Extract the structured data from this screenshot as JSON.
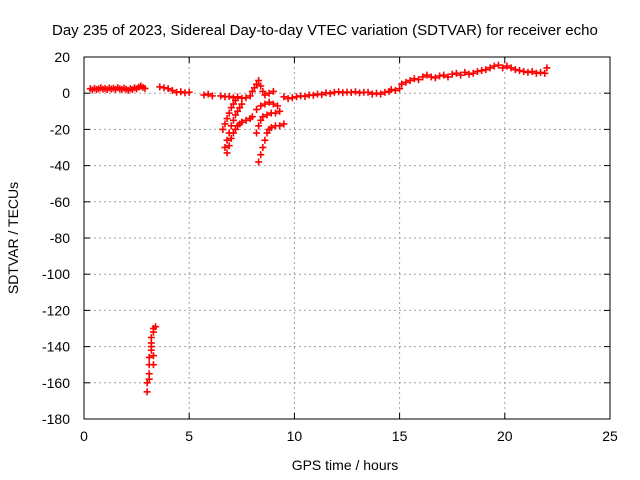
{
  "chart_data": {
    "type": "scatter",
    "title": "Day 235 of 2023, Sidereal Day-to-day VTEC variation (SDTVAR) for receiver echo",
    "xlabel": "GPS time / hours",
    "ylabel": "SDTVAR / TECUs",
    "xlim": [
      0,
      25
    ],
    "ylim": [
      -180,
      20
    ],
    "xticks": [
      0,
      5,
      10,
      15,
      20,
      25
    ],
    "yticks": [
      20,
      0,
      -20,
      -40,
      -60,
      -80,
      -100,
      -120,
      -140,
      -160,
      -180
    ],
    "grid": true,
    "marker": "+",
    "color": "#ff0000",
    "series": [
      {
        "name": "SDTVAR",
        "points": [
          [
            0.3,
            2.5
          ],
          [
            0.4,
            1.8
          ],
          [
            0.5,
            2.7
          ],
          [
            0.6,
            2.0
          ],
          [
            0.7,
            2.4
          ],
          [
            0.8,
            3.0
          ],
          [
            0.9,
            2.2
          ],
          [
            1.0,
            2.6
          ],
          [
            1.1,
            2.0
          ],
          [
            1.2,
            2.9
          ],
          [
            1.3,
            2.3
          ],
          [
            1.4,
            2.7
          ],
          [
            1.5,
            2.1
          ],
          [
            1.6,
            3.1
          ],
          [
            1.7,
            2.4
          ],
          [
            1.8,
            2.0
          ],
          [
            1.9,
            2.8
          ],
          [
            2.0,
            2.2
          ],
          [
            2.1,
            1.6
          ],
          [
            2.2,
            2.5
          ],
          [
            2.3,
            2.0
          ],
          [
            2.4,
            3.0
          ],
          [
            2.5,
            2.4
          ],
          [
            2.6,
            3.4
          ],
          [
            2.7,
            4.0
          ],
          [
            2.8,
            3.2
          ],
          [
            2.9,
            2.6
          ],
          [
            3.6,
            3.5
          ],
          [
            3.8,
            3.0
          ],
          [
            4.0,
            2.5
          ],
          [
            4.2,
            1.5
          ],
          [
            4.4,
            0.5
          ],
          [
            4.6,
            0.8
          ],
          [
            4.8,
            0.2
          ],
          [
            5.0,
            0.5
          ],
          [
            5.7,
            -1.0
          ],
          [
            5.9,
            -0.5
          ],
          [
            6.1,
            -1.5
          ],
          [
            6.5,
            -1.5
          ],
          [
            6.7,
            -2.0
          ],
          [
            6.9,
            -1.8
          ],
          [
            7.1,
            -2.5
          ],
          [
            7.3,
            -2.0
          ],
          [
            7.5,
            -2.8
          ],
          [
            7.7,
            -2.5
          ],
          [
            7.9,
            -1.5
          ],
          [
            6.6,
            -20
          ],
          [
            6.7,
            -17
          ],
          [
            6.8,
            -14
          ],
          [
            6.9,
            -11
          ],
          [
            7.0,
            -8
          ],
          [
            7.1,
            -6
          ],
          [
            7.2,
            -4
          ],
          [
            6.7,
            -30
          ],
          [
            6.8,
            -26
          ],
          [
            6.9,
            -22
          ],
          [
            7.0,
            -18
          ],
          [
            7.1,
            -15
          ],
          [
            7.2,
            -12
          ],
          [
            7.3,
            -10
          ],
          [
            7.4,
            -8
          ],
          [
            7.5,
            -6
          ],
          [
            6.8,
            -33
          ],
          [
            6.9,
            -29
          ],
          [
            7.0,
            -25
          ],
          [
            7.1,
            -22
          ],
          [
            7.2,
            -20
          ],
          [
            7.3,
            -18
          ],
          [
            7.4,
            -17
          ],
          [
            7.5,
            -16
          ],
          [
            7.7,
            -15
          ],
          [
            7.9,
            -14
          ],
          [
            8.0,
            -13
          ],
          [
            8.0,
            1
          ],
          [
            8.1,
            3
          ],
          [
            8.2,
            5
          ],
          [
            8.3,
            7
          ],
          [
            8.4,
            4
          ],
          [
            8.5,
            1
          ],
          [
            8.6,
            -1
          ],
          [
            8.8,
            0
          ],
          [
            9.0,
            1
          ],
          [
            8.2,
            -9
          ],
          [
            8.4,
            -7
          ],
          [
            8.6,
            -6
          ],
          [
            8.8,
            -5
          ],
          [
            9.0,
            -6
          ],
          [
            9.2,
            -7
          ],
          [
            8.2,
            -22
          ],
          [
            8.3,
            -18
          ],
          [
            8.4,
            -15
          ],
          [
            8.5,
            -13
          ],
          [
            8.7,
            -12
          ],
          [
            8.9,
            -11
          ],
          [
            9.1,
            -11
          ],
          [
            9.3,
            -10
          ],
          [
            8.3,
            -38
          ],
          [
            8.4,
            -34
          ],
          [
            8.5,
            -30
          ],
          [
            8.6,
            -26
          ],
          [
            8.7,
            -22
          ],
          [
            8.8,
            -20
          ],
          [
            8.9,
            -19
          ],
          [
            9.1,
            -18
          ],
          [
            9.3,
            -18
          ],
          [
            9.5,
            -17
          ],
          [
            9.5,
            -2
          ],
          [
            9.7,
            -3
          ],
          [
            9.9,
            -2.5
          ],
          [
            10.1,
            -2
          ],
          [
            10.3,
            -1.5
          ],
          [
            10.5,
            -1.8
          ],
          [
            10.7,
            -1
          ],
          [
            10.9,
            -1.2
          ],
          [
            11.1,
            -0.5
          ],
          [
            11.3,
            -0.8
          ],
          [
            11.5,
            0.2
          ],
          [
            11.7,
            -0.2
          ],
          [
            11.9,
            0.5
          ],
          [
            12.1,
            0.8
          ],
          [
            12.3,
            0.3
          ],
          [
            12.5,
            0.6
          ],
          [
            12.7,
            0.4
          ],
          [
            12.9,
            0.8
          ],
          [
            13.1,
            0.2
          ],
          [
            13.3,
            0.5
          ],
          [
            13.5,
            0.5
          ],
          [
            13.7,
            -0.5
          ],
          [
            13.9,
            0
          ],
          [
            14.1,
            -0.5
          ],
          [
            14.3,
            0.5
          ],
          [
            14.5,
            1
          ],
          [
            14.6,
            2
          ],
          [
            14.8,
            1.5
          ],
          [
            15.0,
            2.5
          ],
          [
            15.1,
            5
          ],
          [
            15.3,
            6
          ],
          [
            15.5,
            7
          ],
          [
            15.7,
            8
          ],
          [
            15.9,
            7.5
          ],
          [
            16.1,
            9
          ],
          [
            16.3,
            10
          ],
          [
            16.5,
            9
          ],
          [
            16.7,
            8.5
          ],
          [
            16.9,
            9.5
          ],
          [
            17.1,
            10
          ],
          [
            17.3,
            9
          ],
          [
            17.5,
            10.5
          ],
          [
            17.7,
            11
          ],
          [
            17.9,
            10
          ],
          [
            18.1,
            11.5
          ],
          [
            18.3,
            10.5
          ],
          [
            18.5,
            11
          ],
          [
            18.7,
            12
          ],
          [
            18.9,
            12.5
          ],
          [
            19.1,
            13
          ],
          [
            19.3,
            14
          ],
          [
            19.5,
            15
          ],
          [
            19.7,
            15.5
          ],
          [
            19.9,
            14
          ],
          [
            20.1,
            15
          ],
          [
            20.3,
            14
          ],
          [
            20.5,
            13
          ],
          [
            20.7,
            12.5
          ],
          [
            20.9,
            12
          ],
          [
            21.1,
            11.5
          ],
          [
            21.3,
            12
          ],
          [
            21.5,
            11
          ],
          [
            21.7,
            11.5
          ],
          [
            21.9,
            11
          ],
          [
            22.0,
            14
          ],
          [
            3.0,
            -165
          ],
          [
            3.0,
            -160
          ],
          [
            3.1,
            -155
          ],
          [
            3.1,
            -150
          ],
          [
            3.1,
            -146
          ],
          [
            3.2,
            -142
          ],
          [
            3.2,
            -138
          ],
          [
            3.2,
            -135
          ],
          [
            3.3,
            -132
          ],
          [
            3.3,
            -130
          ],
          [
            3.4,
            -129
          ],
          [
            3.2,
            -140
          ],
          [
            3.3,
            -145
          ],
          [
            3.3,
            -150
          ],
          [
            3.1,
            -158
          ]
        ]
      }
    ]
  }
}
